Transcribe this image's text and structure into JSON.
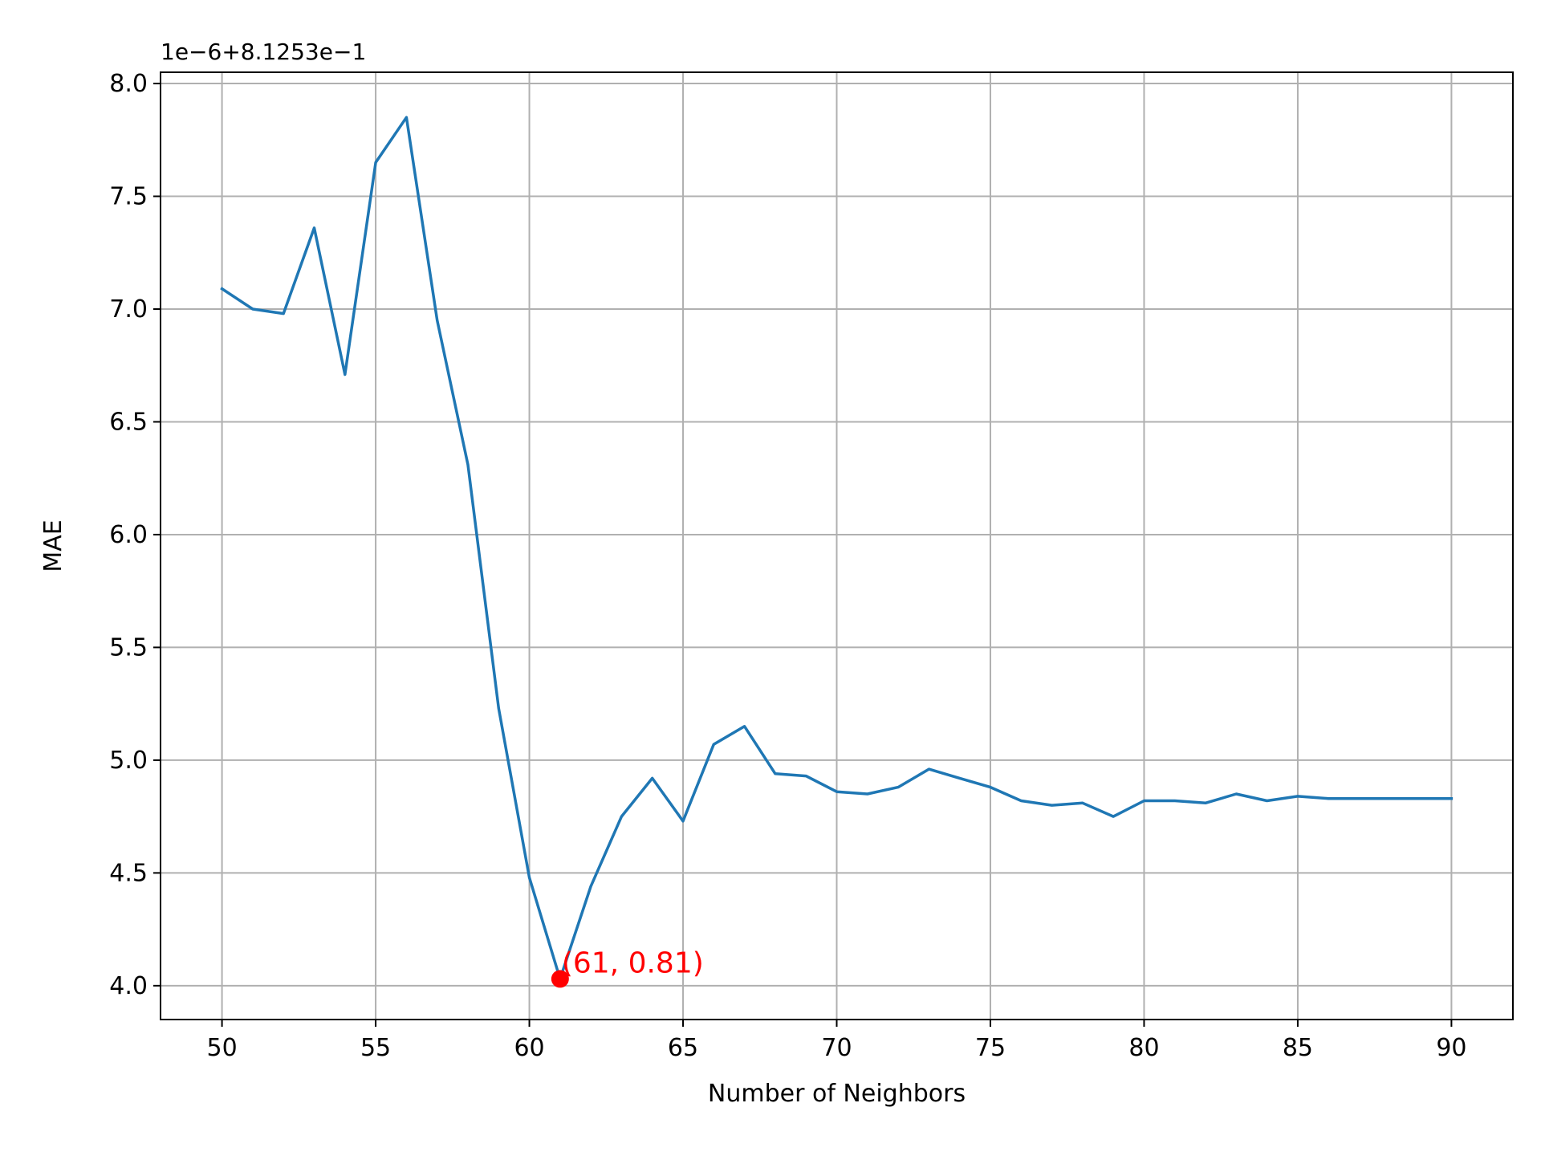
{
  "chart_data": {
    "type": "line",
    "title": "",
    "xlabel": "Number of Neighbors",
    "ylabel": "MAE",
    "offset_label": "1e−6+8.1253e−1",
    "xlim": [
      48,
      92
    ],
    "ylim": [
      3.85,
      8.05
    ],
    "x_ticks": [
      50,
      55,
      60,
      65,
      70,
      75,
      80,
      85,
      90
    ],
    "x_tick_labels": [
      "50",
      "55",
      "60",
      "65",
      "70",
      "75",
      "80",
      "85",
      "90"
    ],
    "y_ticks": [
      4.0,
      4.5,
      5.0,
      5.5,
      6.0,
      6.5,
      7.0,
      7.5,
      8.0
    ],
    "y_tick_labels": [
      "4.0",
      "4.5",
      "5.0",
      "5.5",
      "6.0",
      "6.5",
      "7.0",
      "7.5",
      "8.0"
    ],
    "grid": true,
    "series": [
      {
        "color": "#1f77b4",
        "x": [
          50,
          51,
          52,
          53,
          54,
          55,
          56,
          57,
          58,
          59,
          60,
          61,
          62,
          63,
          64,
          65,
          66,
          67,
          68,
          69,
          70,
          71,
          72,
          73,
          74,
          75,
          76,
          77,
          78,
          79,
          80,
          81,
          82,
          83,
          84,
          85,
          86,
          87,
          88,
          89,
          90
        ],
        "values": [
          7.09,
          7.0,
          6.98,
          7.36,
          6.71,
          7.65,
          7.85,
          6.95,
          6.31,
          5.23,
          4.48,
          4.03,
          4.44,
          4.75,
          4.92,
          4.73,
          5.07,
          5.15,
          4.94,
          4.93,
          4.86,
          4.85,
          4.88,
          4.96,
          4.92,
          4.88,
          4.82,
          4.8,
          4.81,
          4.75,
          4.82,
          4.82,
          4.81,
          4.85,
          4.82,
          4.84,
          4.83,
          4.83,
          4.83,
          4.83,
          4.83
        ]
      }
    ],
    "annotation": {
      "x": 61,
      "y": 4.03,
      "text": "(61, 0.81)",
      "color": "#ff0000"
    }
  }
}
